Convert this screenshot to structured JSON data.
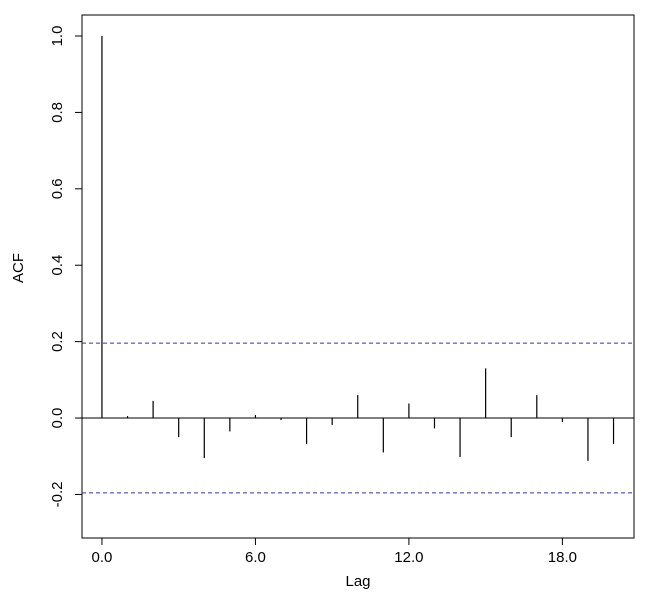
{
  "chart_data": {
    "type": "acf",
    "x_label": "Lag",
    "y_label": "ACF",
    "x": [
      0,
      1,
      2,
      3,
      4,
      5,
      6,
      7,
      8,
      9,
      10,
      11,
      12,
      13,
      14,
      15,
      16,
      17,
      18,
      19,
      20
    ],
    "values": [
      1.0,
      0.005,
      0.045,
      -0.05,
      -0.105,
      -0.035,
      0.008,
      -0.005,
      -0.068,
      -0.018,
      0.06,
      -0.09,
      0.038,
      -0.027,
      -0.102,
      0.13,
      -0.05,
      0.06,
      -0.01,
      -0.112,
      -0.068
    ],
    "color": "#000000",
    "reference_lines": [
      0.196,
      -0.196
    ],
    "reference_color": "#3333aa",
    "xlim": [
      -0.78,
      20.8
    ],
    "ylim": [
      -0.314,
      1.055
    ],
    "xticks": [
      {
        "value": 0,
        "label": "0.0"
      },
      {
        "value": 6,
        "label": "6.0"
      },
      {
        "value": 12,
        "label": "12.0"
      },
      {
        "value": 18,
        "label": "18.0"
      }
    ],
    "yticks": [
      {
        "value": -0.2,
        "label": "-0.2"
      },
      {
        "value": 0,
        "label": "0.0"
      },
      {
        "value": 0.2,
        "label": "0.2"
      },
      {
        "value": 0.4,
        "label": "0.4"
      },
      {
        "value": 0.6,
        "label": "0.6"
      },
      {
        "value": 0.8,
        "label": "0.8"
      },
      {
        "value": 1.0,
        "label": "1.0"
      }
    ]
  }
}
